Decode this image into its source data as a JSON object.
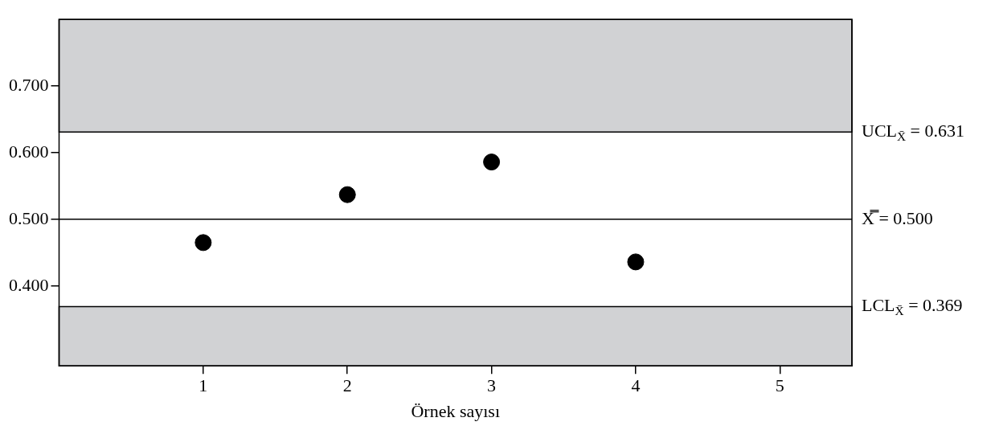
{
  "chart_data": {
    "type": "scatter",
    "xlabel": "Örnek sayısı",
    "x": [
      1,
      2,
      3,
      4
    ],
    "series": [
      {
        "color": "#000000",
        "values": [
          0.465,
          0.537,
          0.586,
          0.436
        ]
      }
    ],
    "marker": "circle",
    "xlim": [
      0,
      5.5
    ],
    "xticks": [
      1,
      2,
      3,
      4,
      5
    ],
    "ylim": [
      0.28,
      0.8
    ],
    "yticks": [
      {
        "value": 0.4,
        "label": "0.400"
      },
      {
        "value": 0.5,
        "label": "0.500"
      },
      {
        "value": 0.6,
        "label": "0.600"
      },
      {
        "value": 0.7,
        "label": "0.700"
      }
    ],
    "ref_lines": [
      {
        "axis": "y",
        "value": 0.5,
        "label": "X̿ = 0.500",
        "color": "#000000"
      }
    ],
    "bands": [
      {
        "axis": "y",
        "from": 0.631,
        "to": 0.8,
        "label": "UCL$_{X̄}$ = 0.631",
        "color": "#d1d2d4"
      },
      {
        "axis": "y",
        "from": 0.28,
        "to": 0.369,
        "label": "LCL$_{X̄}$ = 0.369",
        "color": "#d1d2d4"
      }
    ]
  }
}
